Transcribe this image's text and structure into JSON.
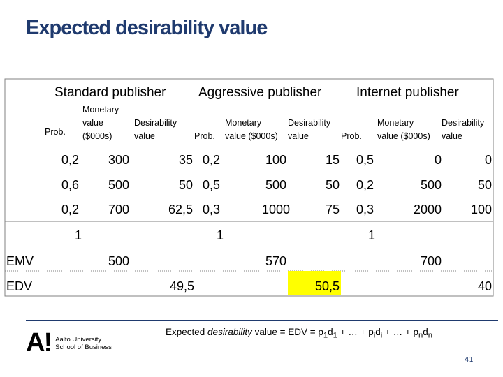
{
  "slide": {
    "title": "Expected desirability value",
    "page_number": "41"
  },
  "publishers": {
    "standard": "Standard publisher",
    "aggressive": "Aggressive publisher",
    "internet": "Internet publisher"
  },
  "subheaders": {
    "prob": "Prob.",
    "monetary": "Monetary",
    "value": "value",
    "thousands": "($000s)",
    "desirability": "Desirability",
    "monetary_value_thousands": "value ($000s)"
  },
  "rows": [
    {
      "s_prob": "0,2",
      "s_mon": "300",
      "s_des": "35",
      "a_prob": "0,2",
      "a_mon": "100",
      "a_des": "15",
      "i_prob": "0,5",
      "i_mon": "0",
      "i_des": "0"
    },
    {
      "s_prob": "0,6",
      "s_mon": "500",
      "s_des": "50",
      "a_prob": "0,5",
      "a_mon": "500",
      "a_des": "50",
      "i_prob": "0,2",
      "i_mon": "500",
      "i_des": "50"
    },
    {
      "s_prob": "0,2",
      "s_mon": "700",
      "s_des": "62,5",
      "a_prob": "0,3",
      "a_mon": "1000",
      "a_des": "75",
      "i_prob": "0,3",
      "i_mon": "2000",
      "i_des": "100"
    }
  ],
  "totals": {
    "s_prob": "1",
    "a_prob": "1",
    "i_prob": "1"
  },
  "emv": {
    "label": "EMV",
    "standard": "500",
    "aggressive": "570",
    "internet": "700"
  },
  "edv": {
    "label": "EDV",
    "standard": "49,5",
    "aggressive": "50,5",
    "internet": "40"
  },
  "highlight_color": "#ffff00",
  "footer": {
    "formula_prefix": "Expected ",
    "formula_italic": "desirability",
    "formula_rest": " value = EDV = p",
    "formula_full_tail": "d",
    "sub1": "1",
    "mid": " + … + p",
    "subi": "i",
    "mid2": " + … + p",
    "subn": "n",
    "logo_mark": "A!",
    "logo_line1": "Aalto University",
    "logo_line2": "School of Business"
  }
}
